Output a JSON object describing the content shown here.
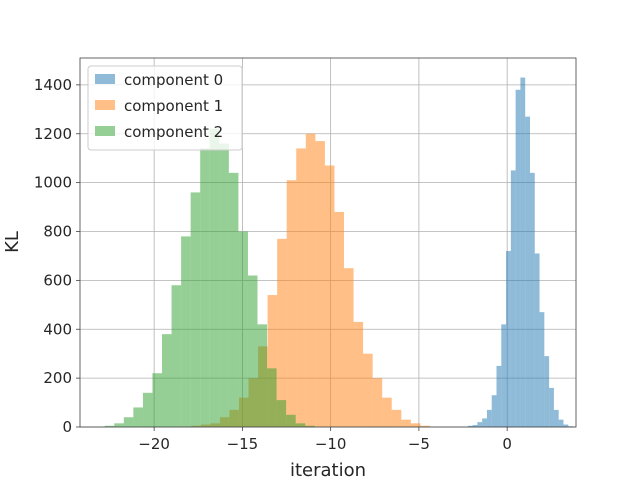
{
  "chart_data": {
    "type": "histogram",
    "xlabel": "iteration",
    "ylabel": "KL",
    "xlim": [
      -24.2,
      3.9
    ],
    "ylim": [
      0,
      1510
    ],
    "xticks": [
      -20,
      -15,
      -10,
      -5,
      0
    ],
    "xtick_labels": [
      "−20",
      "−15",
      "−10",
      "−5",
      "0"
    ],
    "yticks": [
      0,
      200,
      400,
      600,
      800,
      1000,
      1200,
      1400
    ],
    "grid": true,
    "legend_position": "top-left",
    "series": [
      {
        "name": "component 0",
        "color": "#1f77b4",
        "opacity": 0.5,
        "bin_start": -2.23,
        "bin_width": 0.271,
        "counts": [
          5,
          8,
          20,
          35,
          70,
          130,
          250,
          420,
          720,
          1050,
          1380,
          1430,
          1270,
          1040,
          710,
          470,
          290,
          160,
          70,
          30,
          10,
          3
        ]
      },
      {
        "name": "component 1",
        "color": "#ff7f0e",
        "opacity": 0.5,
        "bin_start": -17.9,
        "bin_width": 0.541,
        "counts": [
          5,
          10,
          15,
          40,
          70,
          120,
          200,
          330,
          540,
          770,
          1010,
          1140,
          1200,
          1170,
          1070,
          880,
          650,
          430,
          300,
          200,
          120,
          70,
          30,
          15,
          5,
          2
        ]
      },
      {
        "name": "component 2",
        "color": "#2ca02c",
        "opacity": 0.5,
        "bin_start": -22.8,
        "bin_width": 0.541,
        "counts": [
          5,
          15,
          40,
          80,
          140,
          220,
          380,
          580,
          780,
          960,
          1140,
          1220,
          1160,
          1040,
          800,
          620,
          420,
          240,
          110,
          50,
          15,
          5
        ]
      }
    ]
  }
}
